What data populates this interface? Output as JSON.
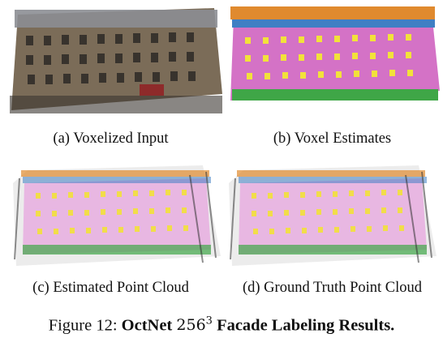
{
  "panels": [
    {
      "caption": "(a) Voxelized Input"
    },
    {
      "caption": "(b) Voxel Estimates"
    },
    {
      "caption": "(c) Estimated Point Cloud"
    },
    {
      "caption": "(d) Ground Truth Point Cloud"
    }
  ],
  "figure_caption": {
    "label": "Figure 12:",
    "title_pre": "OctNet",
    "math_base": "256",
    "math_exp": "3",
    "title_post": "Facade Labeling Results."
  },
  "colors": {
    "window": "#f2e23a",
    "wall": "#d472c6",
    "roof": "#e08a2e",
    "balcony": "#3f7fc4",
    "shop": "#3fa647"
  }
}
